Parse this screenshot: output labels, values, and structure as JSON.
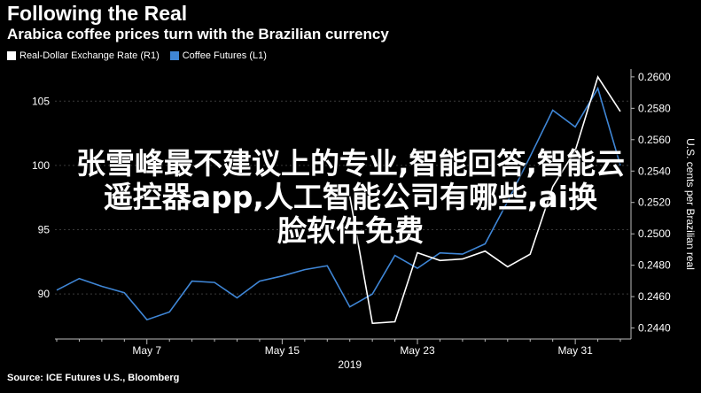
{
  "header": {
    "title": "Following the Real",
    "subtitle": "Arabica coffee prices turn with the Brazilian currency"
  },
  "legend": {
    "items": [
      {
        "label": "Real-Dollar Exchange Rate (R1)",
        "color": "#ffffff"
      },
      {
        "label": "Coffee Futures (L1)",
        "color": "#3f86d6"
      }
    ]
  },
  "footer": {
    "source": "Source: ICE Futures U.S., Bloomberg"
  },
  "overlay": {
    "line1": "张雪峰最不建议上的专业,智能回答,智能云",
    "line2": "遥控器app,人工智能公司有哪些,ai换",
    "line3": "脸软件免费"
  },
  "chart_data": {
    "type": "line",
    "title": "Following the Real",
    "subtitle": "Arabica coffee prices turn with the Brazilian currency",
    "x_ticks": [
      "May 7",
      "May 15",
      "May 23",
      "May 31"
    ],
    "x_year_label": "2019",
    "left_axis": {
      "label": "",
      "ylim": [
        86.5,
        107.5
      ],
      "ticks": [
        90,
        95,
        100,
        105
      ]
    },
    "right_axis": {
      "label": "U.S. cents per Brazilian real",
      "ylim": [
        0.2433,
        0.2605
      ],
      "ticks": [
        "0.2440",
        "0.2460",
        "0.2480",
        "0.2500",
        "0.2520",
        "0.2540",
        "0.2560",
        "0.2580",
        "0.2600"
      ]
    },
    "colors": {
      "real": "#ffffff",
      "coffee": "#3f86d6"
    },
    "x": [
      0,
      1,
      2,
      3,
      4,
      5,
      6,
      7,
      8,
      9,
      10,
      11,
      12,
      13,
      14,
      15,
      16,
      17,
      18,
      19,
      20,
      21,
      22,
      23,
      24,
      25
    ],
    "series": [
      {
        "name": "Real-Dollar Exchange Rate (R1)",
        "axis": "right",
        "values": [
          null,
          null,
          null,
          null,
          null,
          null,
          null,
          null,
          null,
          null,
          null,
          null,
          null,
          0.2524,
          0.2443,
          0.2444,
          0.2488,
          0.2483,
          0.2484,
          0.2489,
          0.2479,
          0.2487,
          0.253,
          0.2553,
          0.26,
          0.2578
        ]
      },
      {
        "name": "Coffee Futures (L1)",
        "axis": "left",
        "values": [
          90.3,
          91.2,
          90.6,
          90.1,
          88.0,
          88.6,
          91.0,
          90.9,
          89.7,
          91.0,
          91.4,
          91.9,
          92.2,
          89.0,
          90.0,
          93.0,
          92.0,
          93.2,
          93.1,
          93.9,
          97.2,
          100.7,
          104.3,
          103.0,
          106.0,
          100.0
        ]
      }
    ],
    "grid": true,
    "legend_position": "top-left"
  }
}
